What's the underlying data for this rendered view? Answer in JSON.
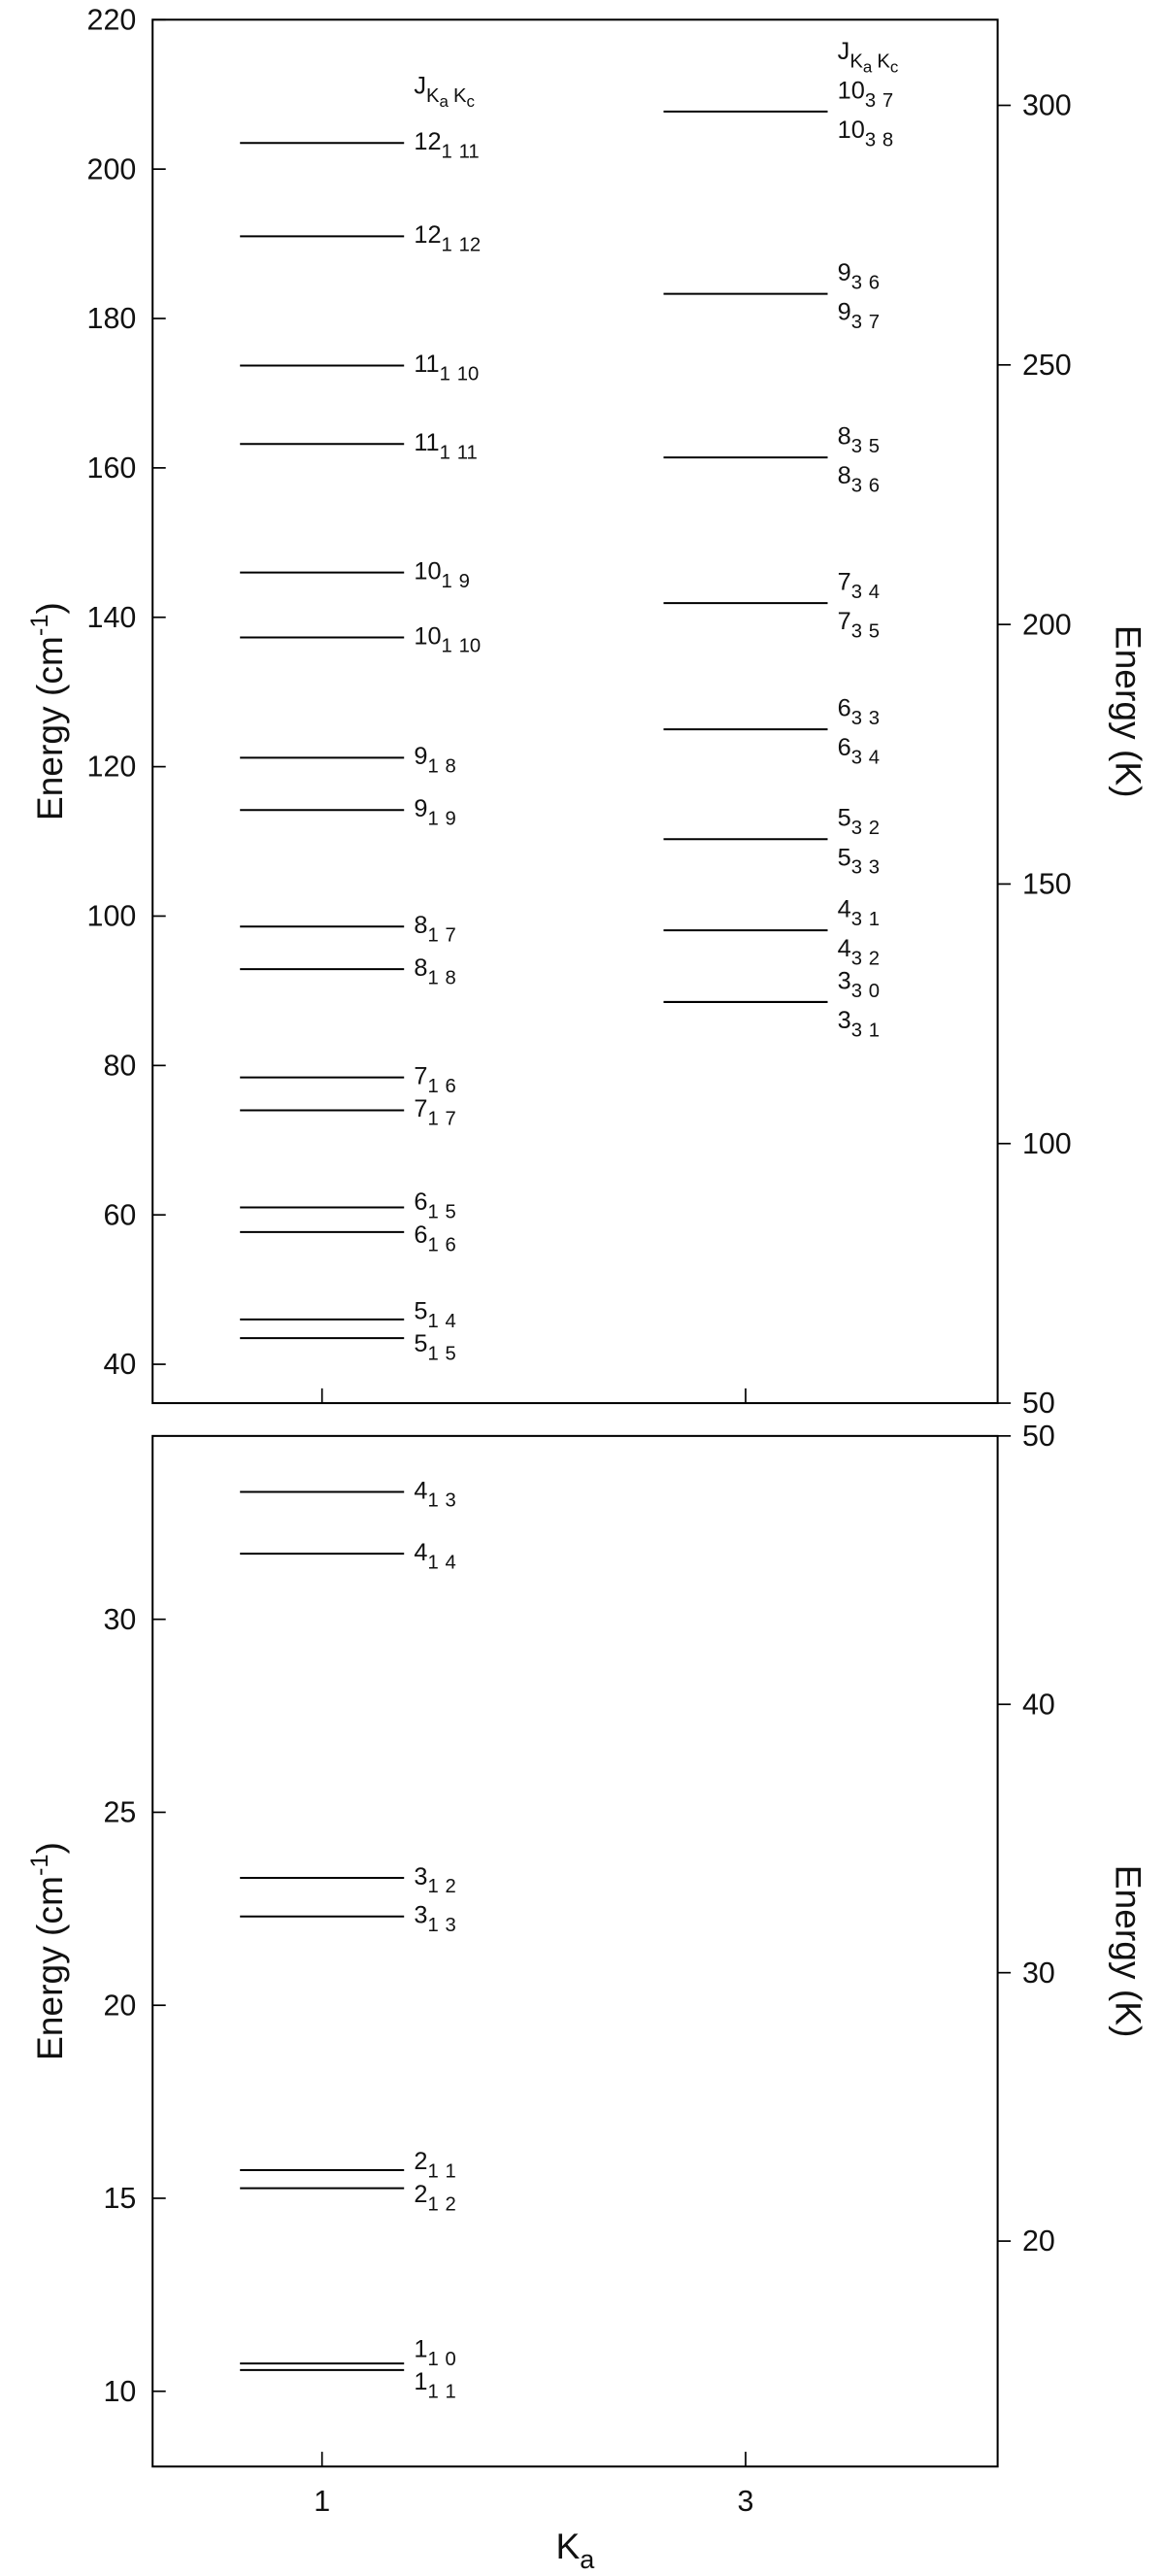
{
  "chart_data": [
    {
      "type": "level",
      "ylabel": {
        "text": "Energy (cm",
        "sup": "-1",
        "close": ")"
      },
      "y2label": "Energy (K)",
      "xlim": [
        0.2,
        4.19
      ],
      "xticks": [
        1,
        3
      ],
      "xtick_labels": false,
      "ylim": [
        34.8,
        220
      ],
      "yticks": [
        40,
        60,
        80,
        100,
        120,
        140,
        160,
        180,
        200,
        220
      ],
      "y2lim": [
        50,
        316.5
      ],
      "y2ticks": [
        50,
        100,
        150,
        200,
        250,
        300
      ],
      "series": [
        {
          "x": 1,
          "color": "#000000",
          "header": {
            "j": "J",
            "ka": [
              "K",
              "a"
            ],
            "kc": [
              "K",
              "c"
            ]
          },
          "values": [
            203.5,
            191.0,
            173.7,
            163.2,
            146.0,
            137.3,
            121.2,
            114.2,
            98.6,
            92.9,
            78.4,
            74.0,
            61.0,
            57.7,
            46.0,
            43.5
          ],
          "labels": [
            [
              {
                "J": 12,
                "Ka": 1,
                "Kc": 11
              }
            ],
            [
              {
                "J": 12,
                "Ka": 1,
                "Kc": 12
              }
            ],
            [
              {
                "J": 11,
                "Ka": 1,
                "Kc": 10
              }
            ],
            [
              {
                "J": 11,
                "Ka": 1,
                "Kc": 11
              }
            ],
            [
              {
                "J": 10,
                "Ka": 1,
                "Kc": 9
              }
            ],
            [
              {
                "J": 10,
                "Ka": 1,
                "Kc": 10
              }
            ],
            [
              {
                "J": 9,
                "Ka": 1,
                "Kc": 8
              }
            ],
            [
              {
                "J": 9,
                "Ka": 1,
                "Kc": 9
              }
            ],
            [
              {
                "J": 8,
                "Ka": 1,
                "Kc": 7
              }
            ],
            [
              {
                "J": 8,
                "Ka": 1,
                "Kc": 8
              }
            ],
            [
              {
                "J": 7,
                "Ka": 1,
                "Kc": 6
              }
            ],
            [
              {
                "J": 7,
                "Ka": 1,
                "Kc": 7
              }
            ],
            [
              {
                "J": 6,
                "Ka": 1,
                "Kc": 5
              }
            ],
            [
              {
                "J": 6,
                "Ka": 1,
                "Kc": 6
              }
            ],
            [
              {
                "J": 5,
                "Ka": 1,
                "Kc": 4
              }
            ],
            [
              {
                "J": 5,
                "Ka": 1,
                "Kc": 5
              }
            ]
          ]
        },
        {
          "x": 3,
          "color": "#000000",
          "header": {
            "j": "J",
            "ka": [
              "K",
              "a"
            ],
            "kc": [
              "K",
              "c"
            ]
          },
          "values": [
            207.7,
            183.3,
            161.4,
            141.9,
            125.0,
            110.3,
            98.1,
            88.5
          ],
          "labels": [
            [
              {
                "J": 10,
                "Ka": 3,
                "Kc": 7
              },
              {
                "J": 10,
                "Ka": 3,
                "Kc": 8
              }
            ],
            [
              {
                "J": 9,
                "Ka": 3,
                "Kc": 6
              },
              {
                "J": 9,
                "Ka": 3,
                "Kc": 7
              }
            ],
            [
              {
                "J": 8,
                "Ka": 3,
                "Kc": 5
              },
              {
                "J": 8,
                "Ka": 3,
                "Kc": 6
              }
            ],
            [
              {
                "J": 7,
                "Ka": 3,
                "Kc": 4
              },
              {
                "J": 7,
                "Ka": 3,
                "Kc": 5
              }
            ],
            [
              {
                "J": 6,
                "Ka": 3,
                "Kc": 3
              },
              {
                "J": 6,
                "Ka": 3,
                "Kc": 4
              }
            ],
            [
              {
                "J": 5,
                "Ka": 3,
                "Kc": 2
              },
              {
                "J": 5,
                "Ka": 3,
                "Kc": 3
              }
            ],
            [
              {
                "J": 4,
                "Ka": 3,
                "Kc": 1
              },
              {
                "J": 4,
                "Ka": 3,
                "Kc": 2
              }
            ],
            [
              {
                "J": 3,
                "Ka": 3,
                "Kc": 0
              },
              {
                "J": 3,
                "Ka": 3,
                "Kc": 1
              }
            ]
          ]
        }
      ]
    },
    {
      "type": "level",
      "ylabel": {
        "text": "Energy (cm",
        "sup": "-1",
        "close": ")"
      },
      "y2label": "Energy (K)",
      "xlabel": {
        "text": "K",
        "sub": "a"
      },
      "xlim": [
        0.2,
        4.19
      ],
      "xticks": [
        1,
        3
      ],
      "xtick_labels": true,
      "ylim": [
        8.05,
        34.75
      ],
      "yticks": [
        10,
        15,
        20,
        25,
        30
      ],
      "y2lim": [
        11.6,
        50
      ],
      "y2ticks": [
        20,
        30,
        40,
        50
      ],
      "series": [
        {
          "x": 1,
          "color": "#000000",
          "values": [
            33.3,
            31.7,
            23.3,
            22.3,
            15.73,
            15.26,
            10.72,
            10.55
          ],
          "labels": [
            [
              {
                "J": 4,
                "Ka": 1,
                "Kc": 3
              }
            ],
            [
              {
                "J": 4,
                "Ka": 1,
                "Kc": 4
              }
            ],
            [
              {
                "J": 3,
                "Ka": 1,
                "Kc": 2
              }
            ],
            [
              {
                "J": 3,
                "Ka": 1,
                "Kc": 3
              }
            ],
            [
              {
                "J": 2,
                "Ka": 1,
                "Kc": 1
              }
            ],
            [
              {
                "J": 2,
                "Ka": 1,
                "Kc": 2
              }
            ],
            [
              {
                "J": 1,
                "Ka": 1,
                "Kc": 0
              }
            ],
            [
              {
                "J": 1,
                "Ka": 1,
                "Kc": 1
              }
            ]
          ]
        }
      ]
    }
  ]
}
